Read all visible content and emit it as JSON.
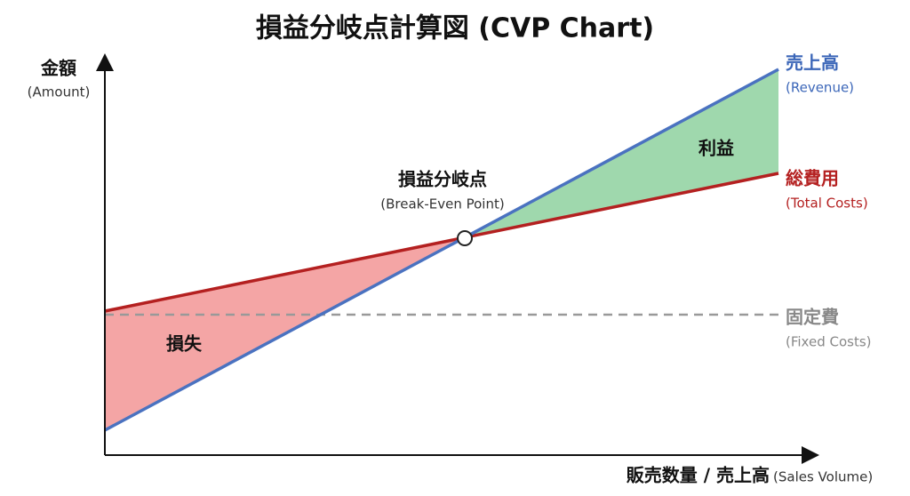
{
  "title": "損益分岐点計算図 (CVP Chart)",
  "y_axis": {
    "label": "金額",
    "sublabel": "(Amount)"
  },
  "x_axis": {
    "label": "販売数量 / 売上高",
    "sublabel": "(Sales Volume)"
  },
  "revenue": {
    "label": "売上高",
    "sublabel": "(Revenue)"
  },
  "total_costs": {
    "label": "総費用",
    "sublabel": "(Total Costs)"
  },
  "fixed_costs": {
    "label": "固定費",
    "sublabel": "(Fixed Costs)"
  },
  "break_even": {
    "label": "損益分岐点",
    "sublabel": "(Break-Even Point)"
  },
  "profit": {
    "label": "利益"
  },
  "loss": {
    "label": "損失"
  }
}
